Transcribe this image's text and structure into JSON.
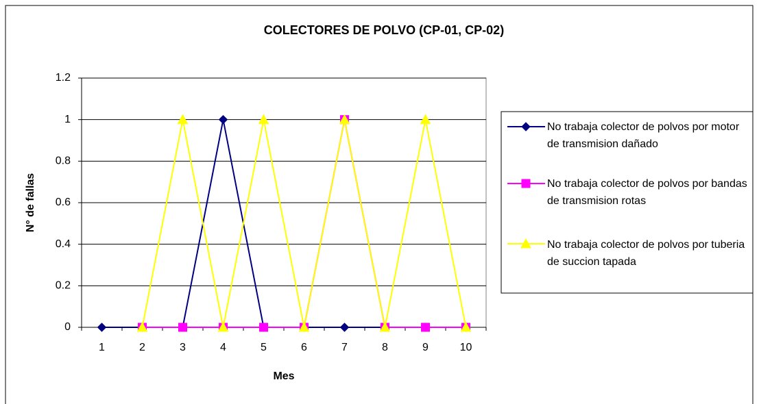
{
  "chart_data": {
    "type": "line",
    "title": "COLECTORES DE POLVO (CP-01, CP-02)",
    "x_label": "Mes",
    "y_label": "N° de fallas",
    "categories": [
      "1",
      "2",
      "3",
      "4",
      "5",
      "6",
      "7",
      "8",
      "9",
      "10"
    ],
    "series": [
      {
        "name": "No trabaja colector de polvos por motor de transmision dañado",
        "color": "#000080",
        "marker": "diamond",
        "values": [
          0,
          0,
          0,
          1,
          0,
          0,
          0,
          0,
          0,
          0
        ]
      },
      {
        "name": "No trabaja colector de polvos por bandas de transmision rotas",
        "color": "#ff00ff",
        "marker": "square",
        "values": [
          null,
          0,
          0,
          0,
          0,
          0,
          1,
          0,
          0,
          0
        ]
      },
      {
        "name": "No trabaja colector de polvos por tuberia de succion tapada",
        "color": "#ffff00",
        "marker": "triangle",
        "values": [
          null,
          0,
          1,
          0,
          1,
          0,
          1,
          0,
          1,
          0
        ]
      }
    ],
    "ylim": [
      0,
      1.2
    ],
    "yticks": [
      0,
      0.2,
      0.4,
      0.6,
      0.8,
      1,
      1.2
    ],
    "grid": true,
    "legend": "right"
  }
}
